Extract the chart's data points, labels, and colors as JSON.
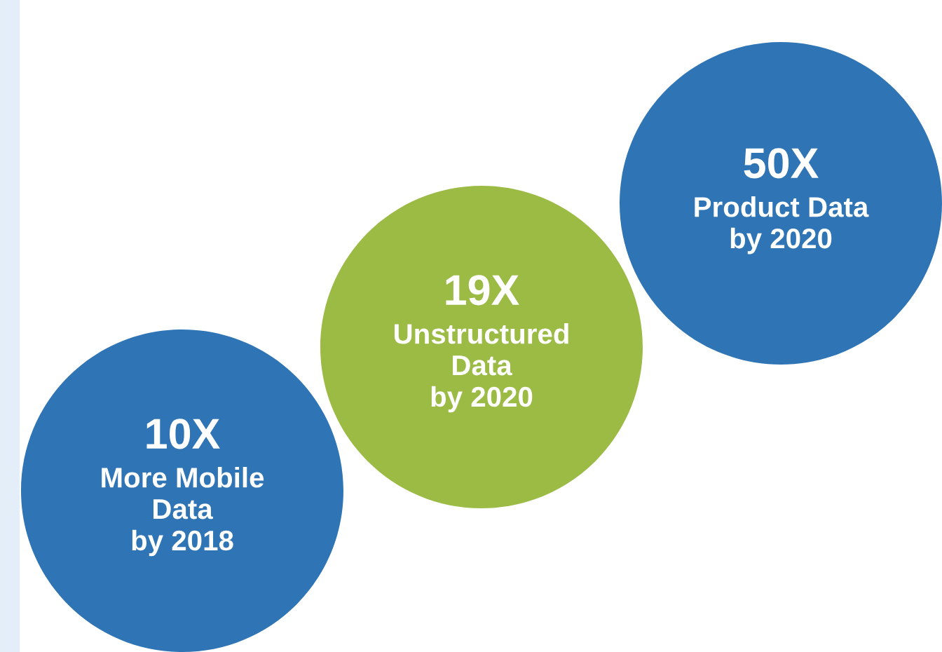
{
  "chart_data": {
    "type": "other",
    "categories": [
      "More Mobile\nData\nby 2018",
      "Unstructured\nData\nby 2020",
      "Product Data\nby 2020"
    ],
    "values": [
      10,
      19,
      50
    ],
    "value_labels": [
      "10X",
      "19X",
      "50X"
    ],
    "colors": [
      "#2f74b5",
      "#9bbb45",
      "#2f74b5"
    ]
  }
}
